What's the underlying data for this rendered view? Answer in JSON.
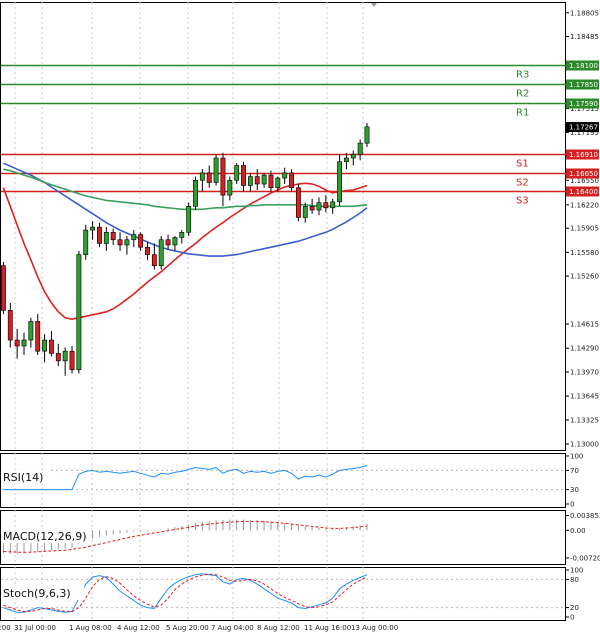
{
  "chart_data": {
    "type": "candlestick",
    "instrument": "EUR/USD",
    "x_tick_labels": [
      "6:00",
      "31 Jul 00:00",
      "1 Aug 08:00",
      "4 Aug 12:00",
      "5 Aug 20:00",
      "7 Aug 04:00",
      "8 Aug 12:00",
      "11 Aug 16:00",
      "13 Aug 00:00"
    ],
    "price_axis": {
      "ylim": [
        1.1292,
        1.1895
      ],
      "ticks": [
        "1.18805",
        "1.18485",
        "1.17835",
        "1.17515",
        "1.17195",
        "1.16870",
        "1.16550",
        "1.16220",
        "1.15905",
        "1.15580",
        "1.15260",
        "1.14615",
        "1.14290",
        "1.13970",
        "1.13645",
        "1.13325",
        "1.13000"
      ],
      "current_price": "1.17267"
    },
    "levels": [
      {
        "name": "R3",
        "value": "1.18100",
        "color": "#2a8a2a"
      },
      {
        "name": "R2",
        "value": "1.17850",
        "color": "#2a8a2a"
      },
      {
        "name": "R1",
        "value": "1.17590",
        "color": "#2a8a2a"
      },
      {
        "name": "S1",
        "value": "1.16910",
        "color": "#d42020"
      },
      {
        "name": "S2",
        "value": "1.16650",
        "color": "#d42020"
      },
      {
        "name": "S3",
        "value": "1.16400",
        "color": "#d42020"
      }
    ],
    "candles": [
      [
        1.154,
        1.1545,
        1.1475,
        1.148
      ],
      [
        1.148,
        1.149,
        1.143,
        1.144
      ],
      [
        1.144,
        1.1455,
        1.1415,
        1.1432
      ],
      [
        1.1432,
        1.145,
        1.142,
        1.144
      ],
      [
        1.144,
        1.147,
        1.143,
        1.1465
      ],
      [
        1.1465,
        1.1475,
        1.142,
        1.1425
      ],
      [
        1.1425,
        1.1448,
        1.141,
        1.144
      ],
      [
        1.144,
        1.1452,
        1.1418,
        1.1422
      ],
      [
        1.1422,
        1.1435,
        1.1405,
        1.1412
      ],
      [
        1.1412,
        1.143,
        1.1392,
        1.1425
      ],
      [
        1.1425,
        1.1432,
        1.1395,
        1.14
      ],
      [
        1.14,
        1.156,
        1.1395,
        1.1555
      ],
      [
        1.1555,
        1.1595,
        1.1548,
        1.1588
      ],
      [
        1.1588,
        1.16,
        1.1575,
        1.1592
      ],
      [
        1.1592,
        1.1598,
        1.1565,
        1.157
      ],
      [
        1.157,
        1.1592,
        1.156,
        1.1585
      ],
      [
        1.1585,
        1.159,
        1.1568,
        1.1575
      ],
      [
        1.1575,
        1.1585,
        1.156,
        1.1568
      ],
      [
        1.1568,
        1.158,
        1.1555,
        1.1575
      ],
      [
        1.1575,
        1.1588,
        1.1565,
        1.1582
      ],
      [
        1.1582,
        1.1585,
        1.156,
        1.1565
      ],
      [
        1.1565,
        1.1572,
        1.1548,
        1.1555
      ],
      [
        1.1555,
        1.157,
        1.1535,
        1.154
      ],
      [
        1.154,
        1.158,
        1.1535,
        1.1575
      ],
      [
        1.1575,
        1.1582,
        1.1562,
        1.1568
      ],
      [
        1.1568,
        1.158,
        1.156,
        1.1578
      ],
      [
        1.1578,
        1.1588,
        1.157,
        1.1585
      ],
      [
        1.1585,
        1.1625,
        1.158,
        1.162
      ],
      [
        1.162,
        1.166,
        1.1615,
        1.1655
      ],
      [
        1.1655,
        1.167,
        1.164,
        1.1665
      ],
      [
        1.1665,
        1.1675,
        1.1645,
        1.1652
      ],
      [
        1.1652,
        1.169,
        1.1648,
        1.1685
      ],
      [
        1.1685,
        1.1692,
        1.162,
        1.1635
      ],
      [
        1.1635,
        1.166,
        1.1628,
        1.1655
      ],
      [
        1.1655,
        1.1678,
        1.165,
        1.1675
      ],
      [
        1.1675,
        1.168,
        1.164,
        1.1648
      ],
      [
        1.1648,
        1.1665,
        1.164,
        1.166
      ],
      [
        1.166,
        1.167,
        1.1642,
        1.165
      ],
      [
        1.165,
        1.1665,
        1.1645,
        1.1662
      ],
      [
        1.1662,
        1.1668,
        1.164,
        1.1645
      ],
      [
        1.1645,
        1.166,
        1.164,
        1.1658
      ],
      [
        1.1658,
        1.1672,
        1.165,
        1.1665
      ],
      [
        1.1665,
        1.167,
        1.164,
        1.1645
      ],
      [
        1.1645,
        1.165,
        1.16,
        1.1605
      ],
      [
        1.1605,
        1.1625,
        1.1598,
        1.162
      ],
      [
        1.162,
        1.163,
        1.161,
        1.1615
      ],
      [
        1.1615,
        1.1632,
        1.1608,
        1.1625
      ],
      [
        1.1625,
        1.1635,
        1.1612,
        1.1618
      ],
      [
        1.1618,
        1.163,
        1.161,
        1.1626
      ],
      [
        1.1626,
        1.169,
        1.162,
        1.168
      ],
      [
        1.168,
        1.1692,
        1.167,
        1.1685
      ],
      [
        1.1685,
        1.1695,
        1.1675,
        1.169
      ],
      [
        1.169,
        1.171,
        1.1682,
        1.1705
      ],
      [
        1.1705,
        1.1732,
        1.17,
        1.1727
      ]
    ],
    "moving_averages": [
      {
        "name": "MA red",
        "color": "#e02020",
        "values": [
          1.1645,
          1.162,
          1.1595,
          1.157,
          1.1548,
          1.1525,
          1.1505,
          1.149,
          1.1478,
          1.147,
          1.1468,
          1.147,
          1.1472,
          1.1474,
          1.1476,
          1.1478,
          1.1482,
          1.1488,
          1.1495,
          1.1502,
          1.151,
          1.1518,
          1.1525,
          1.1532,
          1.154,
          1.1548,
          1.1556,
          1.1563,
          1.157,
          1.1578,
          1.1585,
          1.1592,
          1.1598,
          1.1605,
          1.1611,
          1.1617,
          1.1623,
          1.1628,
          1.1633,
          1.1638,
          1.1642,
          1.1646,
          1.1648,
          1.165,
          1.1651,
          1.165,
          1.1647,
          1.1642,
          1.1638,
          1.164,
          1.1641,
          1.1642,
          1.1645,
          1.1648
        ]
      },
      {
        "name": "MA blue",
        "color": "#3a5fcd",
        "values": [
          1.1678,
          1.1674,
          1.167,
          1.1666,
          1.1662,
          1.1657,
          1.1652,
          1.1646,
          1.164,
          1.1634,
          1.1628,
          1.1622,
          1.1616,
          1.161,
          1.1604,
          1.1598,
          1.1593,
          1.1588,
          1.1584,
          1.158,
          1.1576,
          1.1572,
          1.1568,
          1.1565,
          1.1562,
          1.156,
          1.1558,
          1.1556,
          1.1555,
          1.1554,
          1.1553,
          1.1553,
          1.1553,
          1.1554,
          1.1555,
          1.1557,
          1.1559,
          1.1561,
          1.1563,
          1.1565,
          1.1567,
          1.1569,
          1.1571,
          1.1573,
          1.1576,
          1.1579,
          1.1582,
          1.1585,
          1.1589,
          1.1594,
          1.1599,
          1.1605,
          1.1611,
          1.1618
        ]
      },
      {
        "name": "MA green",
        "color": "#3aa060",
        "values": [
          1.167,
          1.1668,
          1.1665,
          1.1662,
          1.1659,
          1.1656,
          1.1652,
          1.1649,
          1.1646,
          1.1643,
          1.164,
          1.1637,
          1.1634,
          1.1632,
          1.163,
          1.1628,
          1.1627,
          1.1626,
          1.1625,
          1.1624,
          1.1623,
          1.1622,
          1.162,
          1.1619,
          1.1618,
          1.1617,
          1.1616,
          1.1616,
          1.1616,
          1.1616,
          1.1617,
          1.1618,
          1.1618,
          1.1619,
          1.162,
          1.162,
          1.1621,
          1.1621,
          1.1622,
          1.1622,
          1.1622,
          1.1622,
          1.1622,
          1.1622,
          1.1622,
          1.1621,
          1.162,
          1.162,
          1.162,
          1.162,
          1.162,
          1.162,
          1.1621,
          1.1622
        ]
      }
    ],
    "indicators": [
      {
        "name": "RSI(14)",
        "ylim": [
          0,
          100
        ],
        "ticks": [
          "100",
          "70",
          "30",
          "0"
        ],
        "values": [
          30,
          30,
          30,
          30,
          30,
          30,
          30,
          30,
          30,
          30,
          30,
          62,
          68,
          70,
          66,
          68,
          66,
          64,
          66,
          68,
          64,
          60,
          56,
          64,
          62,
          66,
          68,
          72,
          76,
          74,
          72,
          76,
          64,
          70,
          72,
          64,
          68,
          66,
          68,
          64,
          68,
          70,
          64,
          52,
          58,
          56,
          60,
          56,
          62,
          70,
          72,
          74,
          76,
          80
        ]
      },
      {
        "name": "MACD(12,26,9)",
        "ylim": [
          -0.008,
          0.0045
        ],
        "ticks": [
          "0.003853",
          "0.00",
          "-0.007208"
        ],
        "histogram": [
          -0.006,
          -0.0062,
          -0.0062,
          -0.006,
          -0.0058,
          -0.0056,
          -0.0054,
          -0.0052,
          -0.005,
          -0.0048,
          -0.0045,
          -0.0035,
          -0.0028,
          -0.0022,
          -0.0018,
          -0.0014,
          -0.0011,
          -0.0008,
          -0.0006,
          -0.0004,
          -0.0003,
          -0.0002,
          -0.0001,
          0.0002,
          0.0005,
          0.0008,
          0.0011,
          0.0015,
          0.0019,
          0.0022,
          0.0024,
          0.0026,
          0.0027,
          0.0028,
          0.0028,
          0.0028,
          0.0027,
          0.0026,
          0.0025,
          0.0023,
          0.0021,
          0.0019,
          0.0017,
          0.0013,
          0.001,
          0.0008,
          0.0006,
          0.0004,
          0.0003,
          0.0005,
          0.0007,
          0.001,
          0.0013,
          0.0016
        ],
        "signal": [
          -0.0055,
          -0.0056,
          -0.0057,
          -0.0057,
          -0.0057,
          -0.0056,
          -0.0055,
          -0.0054,
          -0.0053,
          -0.0052,
          -0.005,
          -0.0047,
          -0.0044,
          -0.004,
          -0.0036,
          -0.0032,
          -0.0028,
          -0.0024,
          -0.002,
          -0.0016,
          -0.0013,
          -0.001,
          -0.0007,
          -0.0004,
          -0.0001,
          0.0002,
          0.0005,
          0.0008,
          0.0011,
          0.0014,
          0.0016,
          0.0018,
          0.002,
          0.0021,
          0.0022,
          0.0023,
          0.0023,
          0.0023,
          0.0022,
          0.0021,
          0.002,
          0.0018,
          0.0016,
          0.0014,
          0.0012,
          0.001,
          0.0008,
          0.0006,
          0.0005,
          0.0005,
          0.0006,
          0.0007,
          0.0009,
          0.0011
        ]
      },
      {
        "name": "Stoch(9,6,3)",
        "ylim": [
          0,
          100
        ],
        "ticks": [
          "100",
          "80",
          "20",
          "0"
        ],
        "k": [
          20,
          15,
          10,
          10,
          15,
          20,
          18,
          15,
          12,
          10,
          12,
          40,
          70,
          85,
          88,
          84,
          70,
          55,
          45,
          35,
          25,
          20,
          18,
          40,
          60,
          72,
          80,
          86,
          90,
          92,
          90,
          88,
          75,
          70,
          80,
          82,
          78,
          70,
          60,
          50,
          40,
          35,
          30,
          20,
          18,
          22,
          26,
          30,
          40,
          60,
          70,
          78,
          84,
          90
        ],
        "d": [
          25,
          20,
          15,
          12,
          12,
          15,
          18,
          18,
          15,
          12,
          11,
          20,
          40,
          65,
          80,
          86,
          82,
          72,
          58,
          45,
          35,
          27,
          21,
          25,
          40,
          58,
          70,
          79,
          85,
          89,
          91,
          90,
          85,
          78,
          76,
          78,
          80,
          77,
          70,
          60,
          50,
          42,
          35,
          28,
          22,
          20,
          22,
          26,
          32,
          45,
          58,
          70,
          78,
          85
        ]
      }
    ]
  }
}
